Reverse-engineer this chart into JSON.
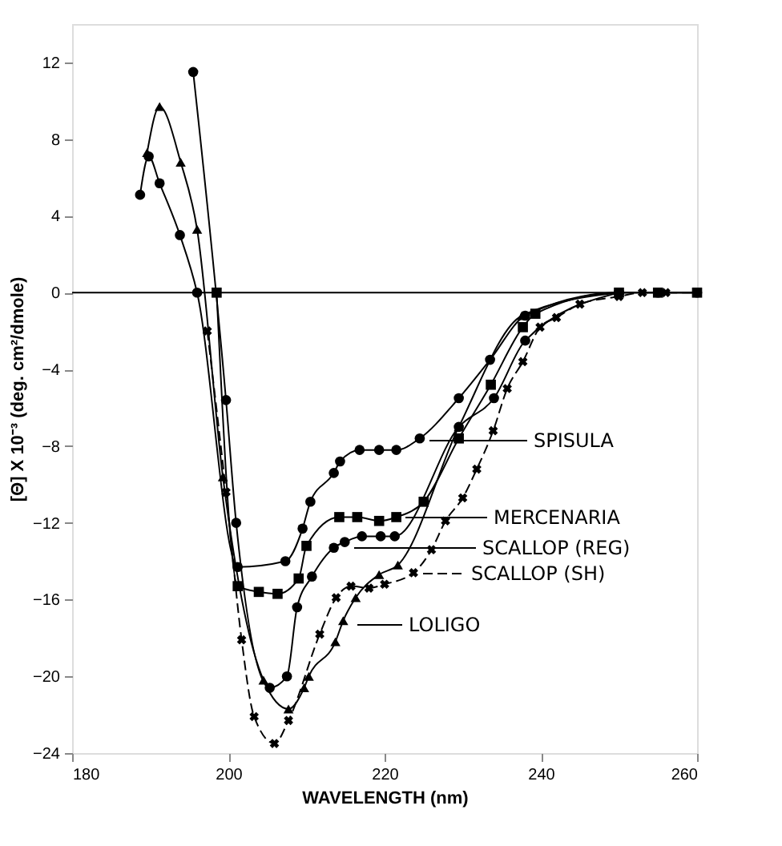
{
  "chart_data": {
    "type": "line",
    "xlabel": "WAVELENGTH (nm)",
    "ylabel": "[Θ] X 10⁻³ (deg. cm²/dmole)",
    "xlim": [
      180,
      260
    ],
    "xticks": [
      180,
      200,
      220,
      240,
      260
    ],
    "ylim": [
      -24,
      14
    ],
    "yticks": [
      -24,
      -20,
      -16,
      -12,
      -8,
      -4,
      0,
      4,
      8,
      12
    ],
    "grid": false,
    "legend": "right",
    "ref_lines": [
      {
        "axis": "y",
        "value": 0,
        "label": null
      }
    ],
    "series": [
      {
        "name": "SPISULA",
        "color": "#000000",
        "marker": "circle",
        "line_style": "solid",
        "x": [
          188.7,
          189.8,
          191.2,
          193.8,
          196,
          201.2,
          207.3,
          209.5,
          210.5,
          213.5,
          214.3,
          216.8,
          219.3,
          221.5,
          224.5,
          229.5,
          233.5,
          238,
          250,
          255,
          260
        ],
        "values": [
          5.1,
          7.1,
          5.7,
          3.0,
          0,
          -14.3,
          -14.0,
          -12.3,
          -10.9,
          -9.4,
          -8.8,
          -8.2,
          -8.2,
          -8.2,
          -7.6,
          -5.5,
          -3.5,
          -1.2,
          0,
          0,
          0
        ]
      },
      {
        "name": "MERCENARIA",
        "color": "#000000",
        "marker": "square",
        "line_style": "solid",
        "x": [
          198.5,
          201.2,
          203.9,
          206.3,
          209,
          210,
          214.2,
          216.5,
          219.3,
          221.5,
          225,
          229.5,
          233.6,
          237.7,
          239.3,
          250,
          255,
          260
        ],
        "values": [
          0,
          -15.3,
          -15.6,
          -15.7,
          -14.9,
          -13.2,
          -11.7,
          -11.7,
          -11.9,
          -11.7,
          -10.9,
          -7.6,
          -4.8,
          -1.8,
          -1.1,
          0,
          0,
          0
        ]
      },
      {
        "name": "SCALLOP (REG)",
        "color": "#000000",
        "marker": "circle",
        "line_style": "solid",
        "x": [
          195.5,
          199.7,
          201,
          205.3,
          207.5,
          208.8,
          210.7,
          213.5,
          214.9,
          217.1,
          219.5,
          221.3,
          229.5,
          234,
          238,
          250
        ],
        "values": [
          11.5,
          -5.6,
          -12.0,
          -20.6,
          -20.0,
          -16.4,
          -14.8,
          -13.3,
          -13.0,
          -12.7,
          -12.7,
          -12.7,
          -7.0,
          -5.5,
          -2.5,
          0
        ]
      },
      {
        "name": "LOLIGO",
        "color": "#000000",
        "marker": "triangle",
        "line_style": "solid",
        "x": [
          189.6,
          191.2,
          193.9,
          196,
          199.3,
          204.5,
          207.7,
          209.7,
          210.3,
          213.7,
          214.7,
          216.3,
          219.3,
          221.7,
          229.5,
          237.6,
          250
        ],
        "values": [
          7.3,
          9.7,
          6.8,
          3.3,
          -9.6,
          -20.2,
          -21.7,
          -20.6,
          -20.0,
          -18.2,
          -17.1,
          -15.9,
          -14.7,
          -14.2,
          -7.0,
          -1.2,
          0
        ]
      },
      {
        "name": "SCALLOP (SH)",
        "color": "#000000",
        "marker": "cross",
        "line_style": "dashed",
        "x": [
          197.3,
          199.7,
          201.7,
          203.3,
          205.9,
          207.7,
          211.7,
          213.8,
          215.7,
          218,
          220,
          223.7,
          226,
          227.8,
          230,
          231.8,
          233.9,
          235.7,
          237.7,
          239.9,
          242,
          245,
          250,
          253,
          256,
          260
        ],
        "values": [
          -2.0,
          -10.4,
          -18.1,
          -22.1,
          -23.5,
          -22.3,
          -17.8,
          -15.9,
          -15.3,
          -15.4,
          -15.2,
          -14.6,
          -13.4,
          -11.9,
          -10.7,
          -9.2,
          -7.2,
          -5.0,
          -3.6,
          -1.8,
          -1.3,
          -0.6,
          -0.2,
          0,
          0,
          0
        ]
      }
    ]
  }
}
